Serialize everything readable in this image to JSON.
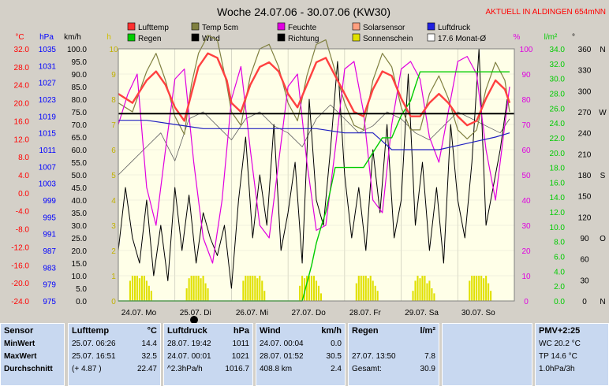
{
  "header": {
    "title": "Woche 24.07.06 - 30.07.06 (KW30)",
    "status": "AKTUELL IN ALDINGEN 654mNN"
  },
  "colors": {
    "bg": "#d4d0c8",
    "plot_bg": "#ffffe8",
    "lufttemp": "#ff4040",
    "temp5cm": "#808040",
    "feuchte": "#e000e0",
    "solar": "#ffa080",
    "luftdruck": "#2020c0",
    "regen": "#00cc00",
    "wind": "#000000",
    "sonne": "#e0e000",
    "avg": "#000000"
  },
  "legend": [
    {
      "label": "Lufttemp",
      "color": "#ff3030",
      "type": "box"
    },
    {
      "label": "Temp 5cm",
      "color": "#808040",
      "type": "box"
    },
    {
      "label": "Feuchte",
      "color": "#e000e0",
      "type": "box"
    },
    {
      "label": "Solarsensor",
      "color": "#ffa080",
      "type": "box"
    },
    {
      "label": "Luftdruck",
      "color": "#2020e0",
      "type": "box"
    },
    {
      "label": "Regen",
      "color": "#00cc00",
      "type": "box"
    },
    {
      "label": "Wind",
      "color": "#000000",
      "type": "box"
    },
    {
      "label": "Richtung",
      "color": "#000000",
      "type": "box"
    },
    {
      "label": "Sonnenschein",
      "color": "#e0e000",
      "type": "box"
    },
    {
      "label": "17.6 Monat-Ø",
      "color": "#ffffff",
      "type": "outline"
    }
  ],
  "axes": {
    "temp": {
      "unit": "°C",
      "ticks": [
        "32.0",
        "28.0",
        "24.0",
        "20.0",
        "16.0",
        "12.0",
        "8.0",
        "4.0",
        "0.0",
        "-4.0",
        "-8.0",
        "-12.0",
        "-16.0",
        "-20.0",
        "-24.0"
      ]
    },
    "hpa": {
      "unit": "hPa",
      "ticks": [
        "1035",
        "1031",
        "1027",
        "1023",
        "1019",
        "1015",
        "1011",
        "1007",
        "1003",
        "999",
        "995",
        "991",
        "987",
        "983",
        "979",
        "975"
      ]
    },
    "kmh": {
      "unit": "km/h",
      "ticks": [
        "100.0",
        "95.0",
        "90.0",
        "85.0",
        "80.0",
        "75.0",
        "70.0",
        "65.0",
        "60.0",
        "55.0",
        "50.0",
        "45.0",
        "40.0",
        "35.0",
        "30.0",
        "25.0",
        "20.0",
        "15.0",
        "10.0",
        "5.0",
        "0.0"
      ]
    },
    "h": {
      "unit": "h",
      "ticks": [
        "10",
        "9",
        "8",
        "7",
        "6",
        "5",
        "4",
        "3",
        "2",
        "1",
        "0"
      ]
    },
    "pct": {
      "unit": "%",
      "ticks": [
        "100",
        "90",
        "80",
        "70",
        "60",
        "50",
        "40",
        "30",
        "20",
        "10",
        "0"
      ]
    },
    "lm2": {
      "unit": "l/m²",
      "ticks": [
        "34.0",
        "32.0",
        "30.0",
        "28.0",
        "26.0",
        "24.0",
        "22.0",
        "20.0",
        "18.0",
        "16.0",
        "14.0",
        "12.0",
        "10.0",
        "8.0",
        "6.0",
        "4.0",
        "2.0",
        "0.0"
      ]
    },
    "dir": {
      "unit": "°",
      "ticks": [
        "360",
        "330",
        "300",
        "270",
        "240",
        "210",
        "180",
        "150",
        "120",
        "90",
        "60",
        "30",
        "0"
      ]
    },
    "compass": {
      "ticks": [
        "N",
        "",
        "",
        "W",
        "",
        "",
        "S",
        "",
        "",
        "O",
        "",
        "",
        "N"
      ]
    },
    "days": [
      "24.07. Mo",
      "25.07. Di",
      "26.07. Mi",
      "27.07. Do",
      "28.07. Fr",
      "29.07. Sa",
      "30.07. So"
    ]
  },
  "chart_data": {
    "type": "line",
    "title": "Woche 24.07.06 - 30.07.06 (KW30)",
    "x_unit": "hour of week",
    "xlim": [
      0,
      168
    ],
    "monthly_avg_temp": 17.6,
    "series": [
      {
        "name": "Lufttemp",
        "unit": "°C",
        "axis": "temp",
        "x": [
          0,
          6,
          12,
          16,
          20,
          24,
          28,
          31,
          34,
          38,
          42,
          46,
          48,
          52,
          56,
          60,
          64,
          68,
          72,
          76,
          80,
          84,
          88,
          92,
          96,
          100,
          104,
          108,
          112,
          116,
          120,
          124,
          128,
          132,
          136,
          140,
          144,
          148,
          152,
          156,
          160,
          164,
          166
        ],
        "y": [
          22,
          20,
          25,
          27,
          24,
          19,
          16,
          22,
          28,
          31,
          30,
          25,
          20,
          18,
          24,
          28,
          29,
          27,
          22,
          19,
          24,
          29,
          30,
          26,
          22,
          18,
          17,
          23,
          27,
          26,
          21,
          17,
          17,
          20,
          22,
          20,
          17,
          15,
          16,
          21,
          25,
          23,
          20
        ]
      },
      {
        "name": "Temp 5cm",
        "unit": "°C",
        "axis": "temp",
        "x": [
          0,
          6,
          12,
          16,
          20,
          24,
          28,
          31,
          34,
          38,
          42,
          46,
          48,
          52,
          56,
          60,
          64,
          68,
          72,
          76,
          80,
          84,
          88,
          92,
          96,
          100,
          104,
          108,
          112,
          116,
          120,
          124,
          128,
          132,
          136,
          140,
          144,
          148,
          152,
          156,
          160,
          164,
          166
        ],
        "y": [
          20,
          18,
          27,
          31,
          25,
          17,
          13,
          24,
          31,
          35,
          34,
          24,
          18,
          15,
          26,
          32,
          33,
          28,
          20,
          16,
          26,
          33,
          34,
          27,
          20,
          15,
          14,
          25,
          31,
          28,
          19,
          14,
          14,
          22,
          26,
          21,
          14,
          12,
          14,
          23,
          29,
          25,
          18
        ]
      },
      {
        "name": "Feuchte",
        "unit": "%",
        "axis": "pct",
        "x": [
          0,
          4,
          8,
          12,
          16,
          20,
          24,
          28,
          32,
          36,
          40,
          44,
          48,
          52,
          56,
          60,
          64,
          68,
          72,
          76,
          80,
          84,
          88,
          92,
          96,
          100,
          104,
          108,
          112,
          116,
          120,
          124,
          128,
          132,
          136,
          140,
          144,
          148,
          152,
          156,
          160,
          164,
          166
        ],
        "y": [
          70,
          82,
          90,
          45,
          30,
          60,
          88,
          92,
          55,
          25,
          15,
          40,
          80,
          93,
          60,
          30,
          25,
          55,
          85,
          90,
          55,
          28,
          30,
          60,
          92,
          95,
          75,
          40,
          35,
          70,
          92,
          95,
          88,
          65,
          55,
          75,
          95,
          97,
          90,
          60,
          40,
          70,
          85
        ]
      },
      {
        "name": "Luftdruck",
        "unit": "hPa",
        "axis": "hpa",
        "x": [
          0,
          12,
          24,
          36,
          48,
          60,
          72,
          84,
          96,
          108,
          112,
          116,
          120,
          128,
          136,
          144,
          152,
          160,
          166
        ],
        "y": [
          1018,
          1018,
          1017,
          1016,
          1016,
          1016,
          1016,
          1016,
          1015,
          1015,
          1013,
          1011,
          1011,
          1011,
          1011,
          1012,
          1013,
          1014,
          1015
        ]
      },
      {
        "name": "Regen",
        "unit": "l/m²",
        "axis": "lm2",
        "x": [
          0,
          60,
          70,
          78,
          82,
          84,
          86,
          88,
          92,
          104,
          108,
          112,
          116,
          120,
          124,
          126,
          128,
          132,
          136,
          140,
          144,
          150,
          160,
          166
        ],
        "y": [
          0,
          0,
          0,
          0,
          4.8,
          7.8,
          10,
          12,
          18,
          18,
          20,
          22,
          22,
          25,
          27,
          29,
          30.9,
          30.9,
          30.9,
          30.9,
          30.9,
          30.9,
          30.9,
          30.9
        ]
      },
      {
        "name": "Wind",
        "unit": "km/h",
        "axis": "kmh",
        "x": [
          0,
          3,
          6,
          9,
          12,
          15,
          18,
          21,
          24,
          27,
          30,
          33,
          36,
          39,
          42,
          45,
          48,
          51,
          54,
          57,
          60,
          63,
          66,
          69,
          72,
          75,
          78,
          81,
          84,
          87,
          90,
          93,
          96,
          99,
          102,
          105,
          108,
          111,
          114,
          117,
          120,
          123,
          126,
          129,
          132,
          135,
          138,
          141,
          144,
          147,
          150,
          153,
          156,
          159,
          162,
          165
        ],
        "y": [
          20,
          45,
          25,
          15,
          40,
          10,
          30,
          8,
          45,
          20,
          42,
          15,
          35,
          25,
          18,
          30,
          5,
          40,
          65,
          25,
          50,
          30,
          70,
          20,
          35,
          55,
          15,
          80,
          40,
          30,
          60,
          95,
          50,
          25,
          45,
          20,
          60,
          35,
          70,
          25,
          40,
          90,
          30,
          55,
          20,
          45,
          15,
          70,
          40,
          25,
          55,
          100,
          30,
          45,
          60,
          80
        ]
      },
      {
        "name": "Richtung",
        "unit": "°",
        "axis": "dir",
        "x": [
          0,
          6,
          12,
          18,
          24,
          30,
          36,
          42,
          48,
          54,
          60,
          66,
          72,
          78,
          84,
          90,
          96,
          102,
          108,
          114,
          120,
          126,
          132,
          138,
          144,
          150,
          156,
          162,
          166
        ],
        "y": [
          180,
          200,
          220,
          240,
          200,
          260,
          270,
          250,
          230,
          260,
          270,
          250,
          240,
          220,
          260,
          280,
          260,
          240,
          250,
          270,
          260,
          240,
          230,
          250,
          270,
          260,
          250,
          240,
          260
        ]
      },
      {
        "name": "Sonnenschein",
        "unit": "h",
        "axis": "h",
        "x": [
          5,
          6,
          7,
          8,
          9,
          10,
          11,
          12,
          13,
          14,
          29,
          30,
          31,
          32,
          33,
          34,
          35,
          36,
          37,
          38,
          53,
          54,
          55,
          56,
          57,
          58,
          59,
          60,
          61,
          62,
          77,
          78,
          79,
          80,
          81,
          82,
          83,
          84,
          85,
          86,
          101,
          102,
          103,
          104,
          105,
          106,
          107,
          108,
          109,
          110,
          125,
          126,
          127,
          128,
          129,
          130,
          131,
          132,
          133,
          134,
          149,
          150,
          151,
          152,
          153,
          154,
          155,
          156,
          157,
          158
        ],
        "y": [
          0.8,
          1.0,
          1.0,
          1.0,
          0.9,
          1.0,
          1.0,
          0.8,
          0.6,
          0.4,
          0.5,
          0.9,
          1.0,
          1.0,
          1.0,
          1.0,
          0.9,
          1.0,
          0.7,
          0.5,
          0.8,
          1.0,
          1.0,
          1.0,
          1.0,
          1.0,
          0.9,
          1.0,
          0.8,
          0.4,
          0.6,
          1.0,
          0.9,
          1.0,
          1.0,
          1.0,
          1.0,
          0.8,
          0.6,
          0.3,
          0.7,
          1.0,
          1.0,
          1.0,
          1.0,
          0.9,
          1.0,
          0.8,
          0.6,
          0.4,
          0.4,
          0.8,
          1.0,
          0.9,
          1.0,
          1.0,
          0.7,
          0.8,
          0.5,
          0.3,
          0.8,
          1.0,
          1.0,
          1.0,
          1.0,
          1.0,
          0.9,
          1.0,
          0.7,
          0.4
        ]
      }
    ]
  },
  "panels": {
    "sensor": {
      "header": "Sensor",
      "rows": [
        "MinWert",
        "MaxWert",
        "Durchschnitt"
      ]
    },
    "lufttemp": {
      "header": "Lufttemp",
      "unit": "°C",
      "rows": [
        [
          "25.07.  06:26",
          "14.4"
        ],
        [
          "25.07.  16:51",
          "32.5"
        ],
        [
          "(+ 4.87 )",
          "22.47"
        ]
      ]
    },
    "luftdruck": {
      "header": "Luftdruck",
      "unit": "hPa",
      "rows": [
        [
          "28.07.  19:42",
          "1011"
        ],
        [
          "24.07.  00:01",
          "1021"
        ],
        [
          "^2.3hPa/h",
          "1016.7"
        ]
      ]
    },
    "wind": {
      "header": "Wind",
      "unit": "km/h",
      "rows": [
        [
          "24.07.  00:04",
          "0.0"
        ],
        [
          "28.07.  01:52",
          "30.5"
        ],
        [
          "408.8 km",
          "2.4"
        ]
      ]
    },
    "regen": {
      "header": "Regen",
      "unit": "l/m²",
      "rows": [
        [
          "",
          ""
        ],
        [
          "27.07.  13:50",
          "7.8"
        ],
        [
          "Gesamt:",
          "30.9"
        ]
      ]
    },
    "pmv": {
      "header": "PMV+2:25",
      "rows": [
        "WC 20.2 °C",
        "TP 14.6 °C",
        "1.0hPa/3h"
      ]
    }
  }
}
